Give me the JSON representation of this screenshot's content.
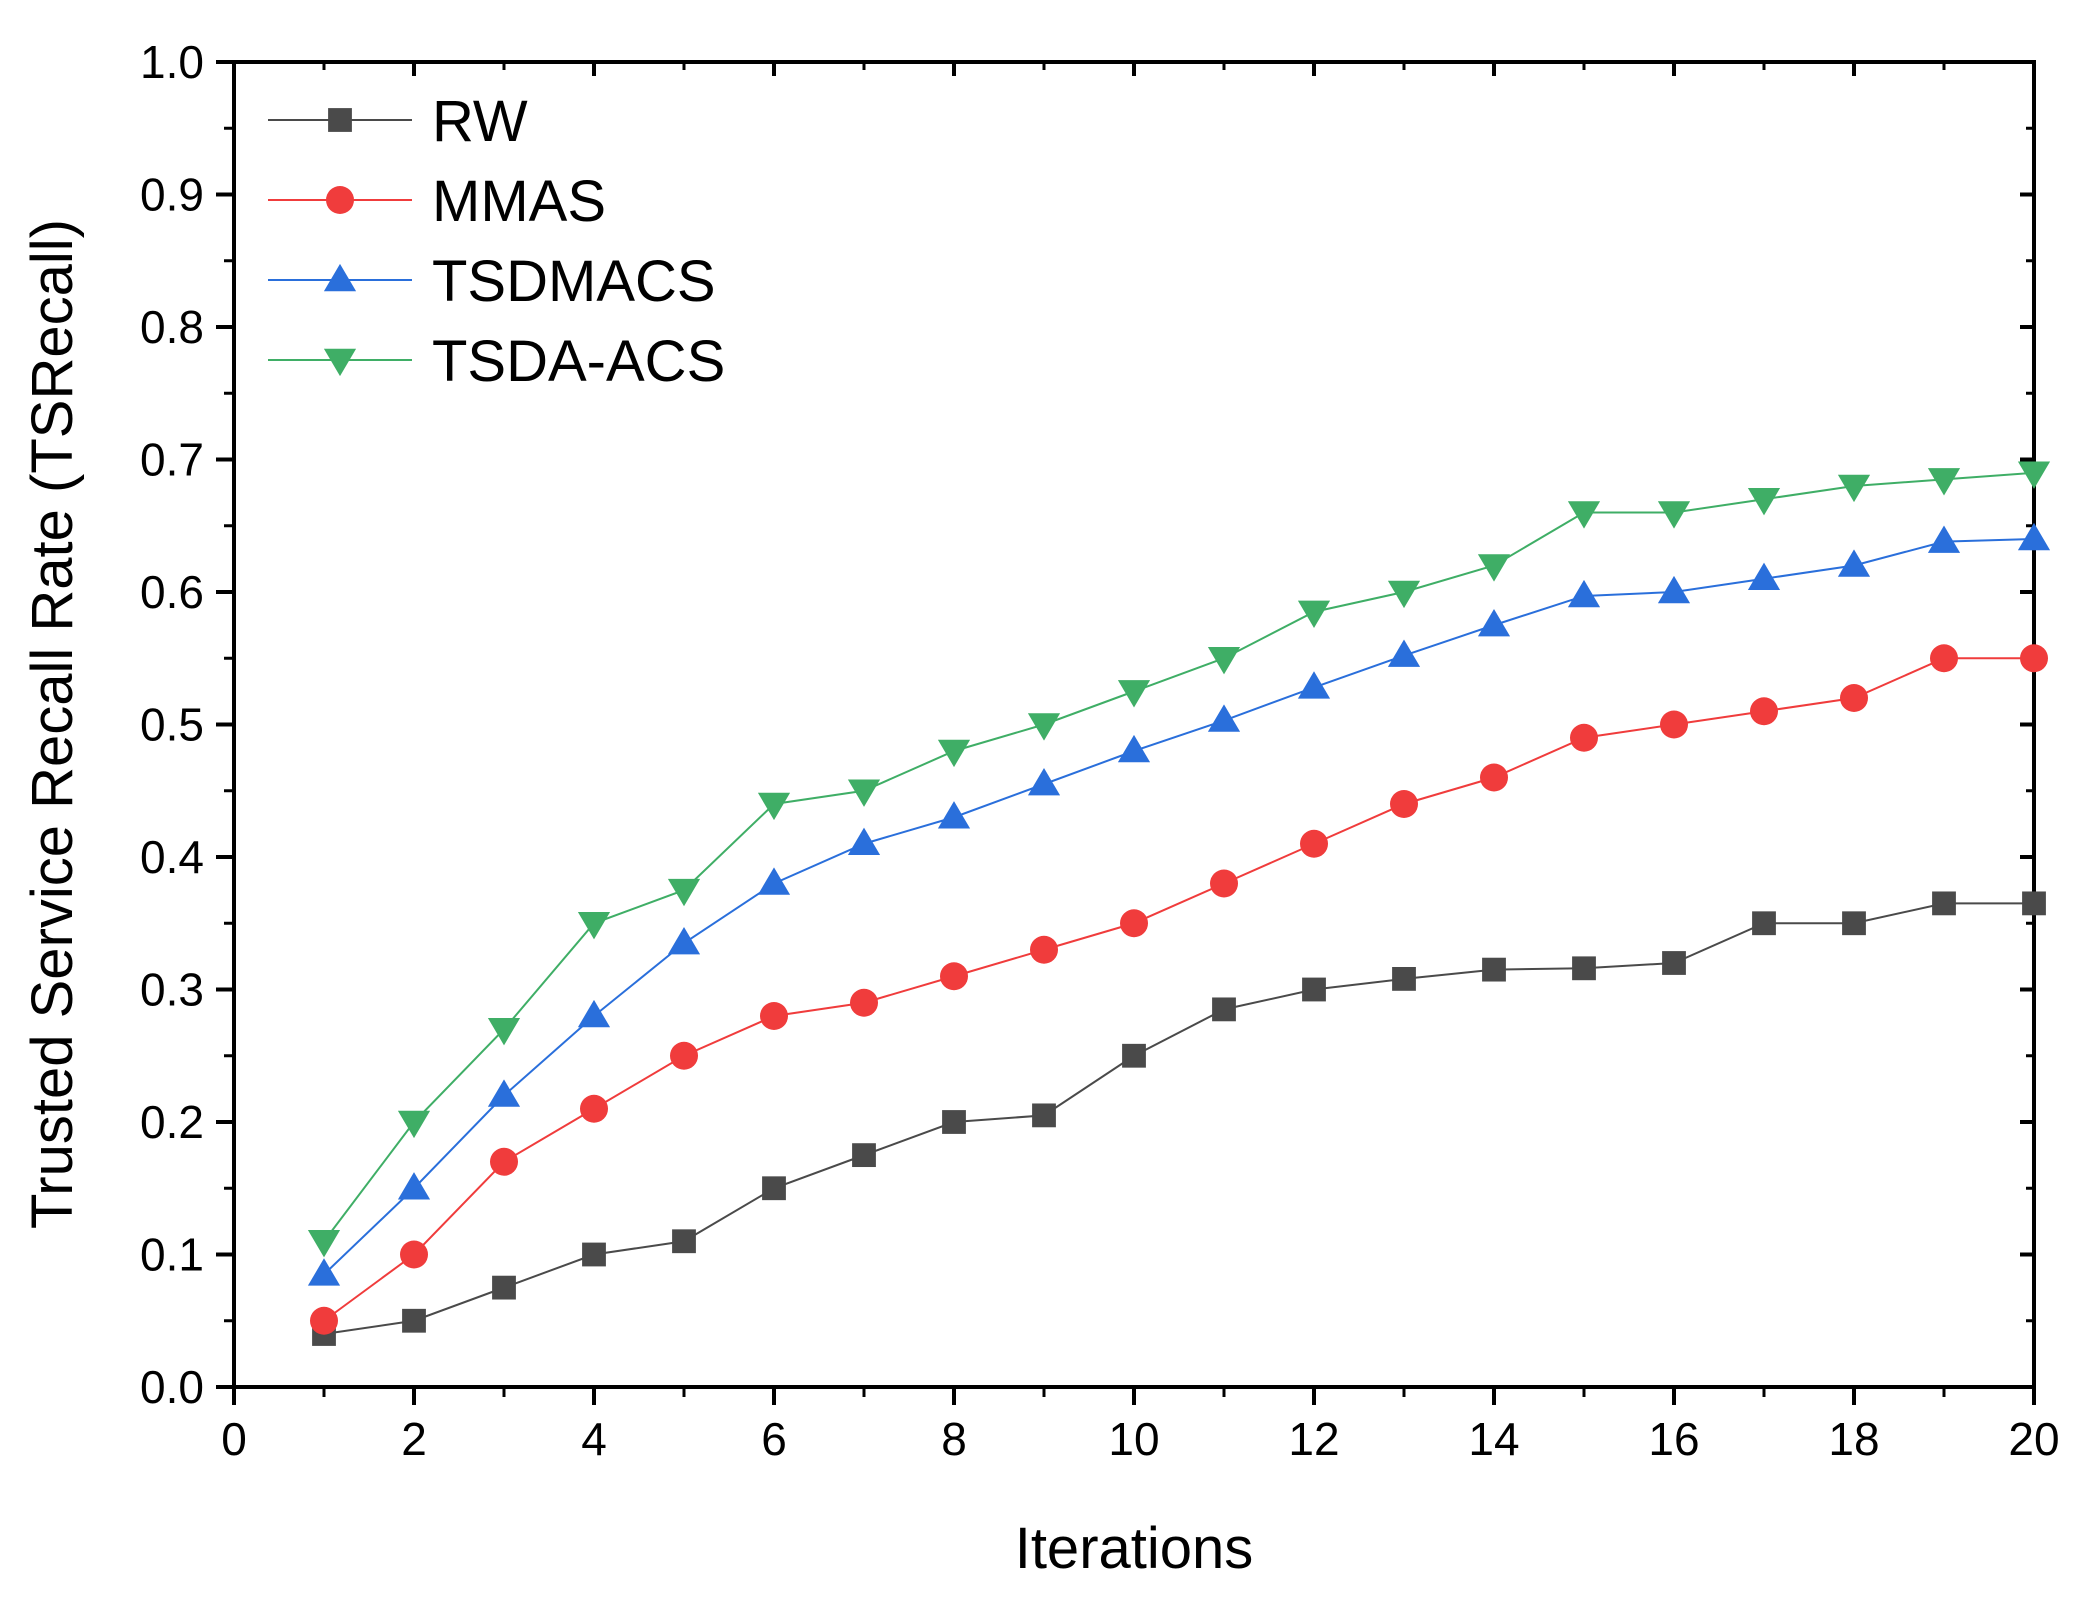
{
  "chart_data": {
    "type": "line",
    "title": "",
    "xlabel": "Iterations",
    "ylabel": "Trusted Service Recall Rate (TSRecall)",
    "xlim": [
      0,
      20
    ],
    "ylim": [
      0.0,
      1.0
    ],
    "xticks": [
      "0",
      "2",
      "4",
      "6",
      "8",
      "10",
      "12",
      "14",
      "16",
      "18",
      "20"
    ],
    "yticks": [
      "0.0",
      "0.1",
      "0.2",
      "0.3",
      "0.4",
      "0.5",
      "0.6",
      "0.7",
      "0.8",
      "0.9",
      "1.0"
    ],
    "grid": false,
    "legend_position": "top-left",
    "x": [
      1,
      2,
      3,
      4,
      5,
      6,
      7,
      8,
      9,
      10,
      11,
      12,
      13,
      14,
      15,
      16,
      17,
      18,
      19,
      20
    ],
    "series": [
      {
        "name": "RW",
        "color": "#4a4a4a",
        "marker": "square",
        "values": [
          0.04,
          0.05,
          0.075,
          0.1,
          0.11,
          0.15,
          0.175,
          0.2,
          0.205,
          0.25,
          0.285,
          0.3,
          0.308,
          0.315,
          0.316,
          0.32,
          0.35,
          0.35,
          0.365,
          0.365
        ]
      },
      {
        "name": "MMAS",
        "color": "#f03c3c",
        "marker": "circle",
        "values": [
          0.05,
          0.1,
          0.17,
          0.21,
          0.25,
          0.28,
          0.29,
          0.31,
          0.33,
          0.35,
          0.38,
          0.41,
          0.44,
          0.46,
          0.49,
          0.5,
          0.51,
          0.52,
          0.55,
          0.55
        ]
      },
      {
        "name": "TSDMACS",
        "color": "#2a6fdb",
        "marker": "triangle-up",
        "values": [
          0.085,
          0.15,
          0.22,
          0.28,
          0.335,
          0.38,
          0.41,
          0.43,
          0.455,
          0.48,
          0.503,
          0.528,
          0.552,
          0.575,
          0.597,
          0.6,
          0.61,
          0.62,
          0.638,
          0.64
        ]
      },
      {
        "name": "TSDA-ACS",
        "color": "#3fae66",
        "marker": "triangle-down",
        "values": [
          0.11,
          0.2,
          0.27,
          0.35,
          0.375,
          0.44,
          0.45,
          0.48,
          0.5,
          0.525,
          0.55,
          0.585,
          0.6,
          0.62,
          0.66,
          0.66,
          0.67,
          0.68,
          0.685,
          0.69
        ]
      }
    ]
  }
}
